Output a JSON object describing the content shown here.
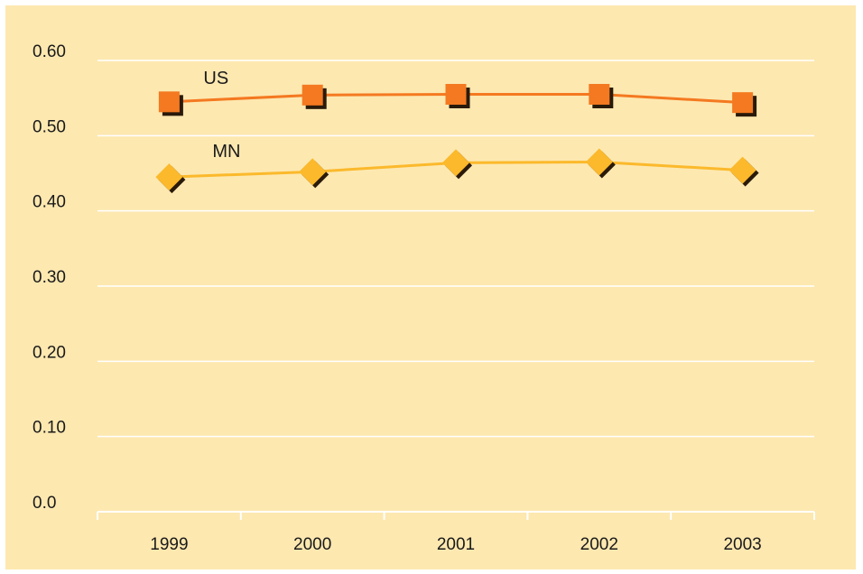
{
  "chart_data": {
    "type": "line",
    "categories": [
      "1999",
      "2000",
      "2001",
      "2002",
      "2003"
    ],
    "y_ticks": [
      "0.0",
      "0.10",
      "0.20",
      "0.30",
      "0.40",
      "0.50",
      "0.60"
    ],
    "ylim": [
      0,
      0.6
    ],
    "grid": true,
    "series": [
      {
        "name": "US",
        "marker": "square",
        "values": [
          0.545,
          0.554,
          0.555,
          0.555,
          0.544
        ]
      },
      {
        "name": "MN",
        "marker": "diamond",
        "values": [
          0.445,
          0.452,
          0.464,
          0.465,
          0.454
        ]
      }
    ]
  },
  "colors": {
    "background": "#fde8b0",
    "gridline": "#ffffff",
    "us_series": "#f47920",
    "mn_series": "#fbb92b",
    "shadow": "#2a1a0a"
  }
}
